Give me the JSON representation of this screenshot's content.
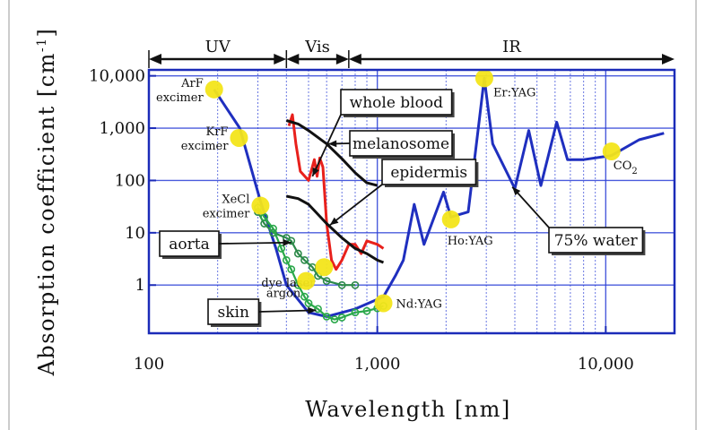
{
  "chart_data": {
    "type": "line",
    "xscale": "log",
    "yscale": "log",
    "xlabel": "Wavelength [nm]",
    "ylabel": "Absorption coefficient [cm-1]",
    "xlim": [
      100,
      20000
    ],
    "ylim": [
      0.12,
      13000
    ],
    "x_ticks": [
      {
        "value": 100,
        "label": "100"
      },
      {
        "value": 1000,
        "label": "1,000"
      },
      {
        "value": 10000,
        "label": "10,000"
      }
    ],
    "y_ticks": [
      {
        "value": 10000,
        "label": "10,000"
      },
      {
        "value": 1000,
        "label": "1,000"
      },
      {
        "value": 100,
        "label": "100"
      },
      {
        "value": 10,
        "label": "10"
      },
      {
        "value": 1,
        "label": "1"
      }
    ],
    "grid": true,
    "regions": [
      {
        "label": "UV",
        "from": 100,
        "to": 400
      },
      {
        "label": "Vis",
        "from": 400,
        "to": 750
      },
      {
        "label": "IR",
        "from": 750,
        "to": 20000
      }
    ],
    "series": [
      {
        "name": "75% water",
        "color": "#1f2fbf",
        "style": "solid",
        "points": [
          [
            193,
            5500
          ],
          [
            250,
            1000
          ],
          [
            308,
            40
          ],
          [
            360,
            5
          ],
          [
            400,
            1
          ],
          [
            500,
            0.3
          ],
          [
            600,
            0.25
          ],
          [
            800,
            0.35
          ],
          [
            1064,
            0.6
          ],
          [
            1200,
            1.5
          ],
          [
            1300,
            3
          ],
          [
            1450,
            35
          ],
          [
            1600,
            6
          ],
          [
            1950,
            60
          ],
          [
            2100,
            20
          ],
          [
            2500,
            25
          ],
          [
            2800,
            1500
          ],
          [
            2940,
            9000
          ],
          [
            3200,
            500
          ],
          [
            4000,
            70
          ],
          [
            4600,
            900
          ],
          [
            5200,
            80
          ],
          [
            6100,
            1300
          ],
          [
            6800,
            250
          ],
          [
            8000,
            250
          ],
          [
            10600,
            300
          ],
          [
            14000,
            600
          ],
          [
            18000,
            800
          ]
        ]
      },
      {
        "name": "whole blood",
        "color": "#e8201c",
        "style": "solid",
        "points": [
          [
            410,
            1100
          ],
          [
            425,
            1800
          ],
          [
            440,
            500
          ],
          [
            460,
            150
          ],
          [
            500,
            100
          ],
          [
            530,
            250
          ],
          [
            545,
            120
          ],
          [
            560,
            270
          ],
          [
            578,
            180
          ],
          [
            600,
            15
          ],
          [
            630,
            3
          ],
          [
            660,
            2
          ],
          [
            700,
            3
          ],
          [
            750,
            6
          ],
          [
            800,
            6
          ],
          [
            850,
            4
          ],
          [
            900,
            7
          ],
          [
            1000,
            6
          ],
          [
            1064,
            5
          ]
        ]
      },
      {
        "name": "melanosome",
        "color": "#111111",
        "style": "solid",
        "points": [
          [
            400,
            1400
          ],
          [
            450,
            1200
          ],
          [
            500,
            900
          ],
          [
            600,
            500
          ],
          [
            700,
            260
          ],
          [
            800,
            140
          ],
          [
            900,
            90
          ],
          [
            1000,
            80
          ]
        ]
      },
      {
        "name": "epidermis",
        "color": "#111111",
        "style": "solid",
        "points": [
          [
            400,
            50
          ],
          [
            450,
            45
          ],
          [
            500,
            35
          ],
          [
            600,
            15
          ],
          [
            700,
            8
          ],
          [
            800,
            5
          ],
          [
            900,
            4
          ],
          [
            1000,
            3
          ],
          [
            1064,
            2.7
          ]
        ]
      },
      {
        "name": "aorta",
        "color": "#2d8a4a",
        "style": "markers-line",
        "points": [
          [
            300,
            25
          ],
          [
            320,
            15
          ],
          [
            350,
            10
          ],
          [
            400,
            8
          ],
          [
            420,
            7
          ],
          [
            450,
            4
          ],
          [
            480,
            3
          ],
          [
            520,
            2.2
          ],
          [
            550,
            1.5
          ],
          [
            600,
            1.2
          ],
          [
            700,
            1
          ],
          [
            800,
            1
          ]
        ]
      },
      {
        "name": "skin",
        "color": "#2aa84a",
        "style": "markers-line",
        "points": [
          [
            300,
            30
          ],
          [
            320,
            20
          ],
          [
            350,
            12
          ],
          [
            380,
            5
          ],
          [
            400,
            3
          ],
          [
            420,
            2
          ],
          [
            450,
            1
          ],
          [
            480,
            0.6
          ],
          [
            500,
            0.45
          ],
          [
            550,
            0.35
          ],
          [
            600,
            0.25
          ],
          [
            650,
            0.22
          ],
          [
            700,
            0.24
          ],
          [
            800,
            0.3
          ],
          [
            900,
            0.32
          ],
          [
            1000,
            0.36
          ],
          [
            1064,
            0.4
          ]
        ]
      }
    ],
    "lasers": [
      {
        "label": [
          "ArF",
          "excimer"
        ],
        "x": 193,
        "y": 5500
      },
      {
        "label": [
          "KrF",
          "excimer"
        ],
        "x": 248,
        "y": 650
      },
      {
        "label": [
          "XeCl",
          "excimer"
        ],
        "x": 308,
        "y": 33
      },
      {
        "label": [
          "dye laser"
        ],
        "x": 585,
        "y": 2.2
      },
      {
        "label": [
          "argon"
        ],
        "x": 488,
        "y": 1.2
      },
      {
        "label": [
          "Nd:YAG"
        ],
        "x": 1064,
        "y": 0.45
      },
      {
        "label": [
          "Ho:YAG"
        ],
        "x": 2100,
        "y": 18
      },
      {
        "label": [
          "Er:YAG"
        ],
        "x": 2940,
        "y": 9000
      },
      {
        "label": [
          "CO",
          "2"
        ],
        "x": 10600,
        "y": 360
      }
    ],
    "callouts": [
      {
        "label": "whole blood",
        "target_series": "whole blood"
      },
      {
        "label": "melanosome",
        "target_series": "melanosome"
      },
      {
        "label": "epidermis",
        "target_series": "epidermis"
      },
      {
        "label": "aorta",
        "target_series": "aorta"
      },
      {
        "label": "skin",
        "target_series": "skin"
      },
      {
        "label": "75% water",
        "target_series": "75% water"
      }
    ],
    "colors": {
      "axis": "#1b2bb8",
      "grid": "#2b3fd6",
      "laser_marker": "#f3e51a"
    }
  }
}
